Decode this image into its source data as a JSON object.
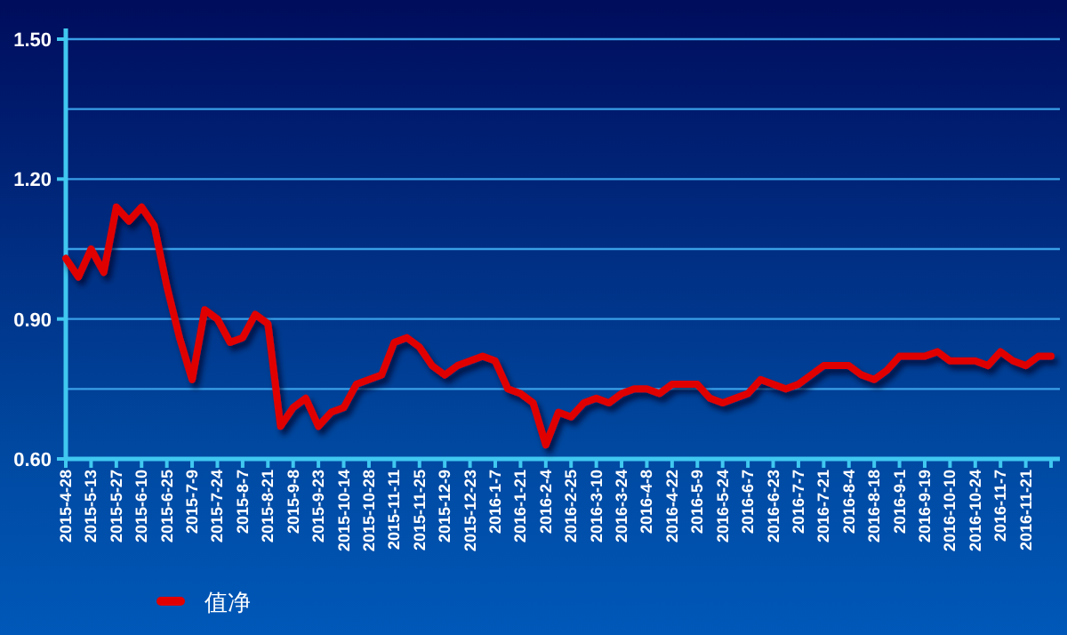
{
  "chart_data": {
    "type": "line",
    "categories": [
      "2015-4-28",
      null,
      "2015-5-13",
      null,
      "2015-5-27",
      null,
      "2015-6-10",
      null,
      "2015-6-25",
      null,
      "2015-7-9",
      null,
      "2015-7-24",
      null,
      "2015-8-7",
      null,
      "2015-8-21",
      null,
      "2015-9-8",
      null,
      "2015-9-23",
      null,
      "2015-10-14",
      null,
      "2015-10-28",
      null,
      "2015-11-11",
      null,
      "2015-11-25",
      null,
      "2015-12-9",
      null,
      "2015-12-23",
      null,
      "2016-1-7",
      null,
      "2016-1-21",
      null,
      "2016-2-4",
      null,
      "2016-2-25",
      null,
      "2016-3-10",
      null,
      "2016-3-24",
      null,
      "2016-4-8",
      null,
      "2016-4-22",
      null,
      "2016-5-9",
      null,
      "2016-5-24",
      null,
      "2016-6-7",
      null,
      "2016-6-23",
      null,
      "2016-7-7",
      null,
      "2016-7-21",
      null,
      "2016-8-4",
      null,
      "2016-8-18",
      null,
      "2016-9-1",
      null,
      "2016-9-19",
      null,
      "2016-10-10",
      null,
      "2016-10-24",
      null,
      "2016-11-7",
      null,
      "2016-11-21",
      null,
      null
    ],
    "series": [
      {
        "name": "值净",
        "color": "#e00000",
        "values": [
          1.03,
          0.99,
          1.05,
          1.0,
          1.14,
          1.11,
          1.14,
          1.1,
          0.97,
          0.86,
          0.77,
          0.92,
          0.9,
          0.85,
          0.86,
          0.91,
          0.89,
          0.67,
          0.71,
          0.73,
          0.67,
          0.7,
          0.71,
          0.76,
          0.77,
          0.78,
          0.85,
          0.86,
          0.84,
          0.8,
          0.78,
          0.8,
          0.81,
          0.82,
          0.81,
          0.75,
          0.74,
          0.72,
          0.63,
          0.7,
          0.69,
          0.72,
          0.73,
          0.72,
          0.74,
          0.75,
          0.75,
          0.74,
          0.76,
          0.76,
          0.76,
          0.73,
          0.72,
          0.73,
          0.74,
          0.77,
          0.76,
          0.75,
          0.76,
          0.78,
          0.8,
          0.8,
          0.8,
          0.78,
          0.77,
          0.79,
          0.82,
          0.82,
          0.82,
          0.83,
          0.81,
          0.81,
          0.81,
          0.8,
          0.83,
          0.81,
          0.8,
          0.82,
          0.82
        ]
      }
    ],
    "ylim": [
      0.6,
      1.5
    ],
    "yticks": [
      {
        "value": 0.6,
        "label": "0.60"
      },
      {
        "value": 0.75,
        "label": null
      },
      {
        "value": 0.9,
        "label": "0.90"
      },
      {
        "value": 1.05,
        "label": null
      },
      {
        "value": 1.2,
        "label": "1.20"
      },
      {
        "value": 1.35,
        "label": null
      },
      {
        "value": 1.5,
        "label": "1.50"
      }
    ],
    "grid": "y",
    "legend": "bottom left"
  }
}
